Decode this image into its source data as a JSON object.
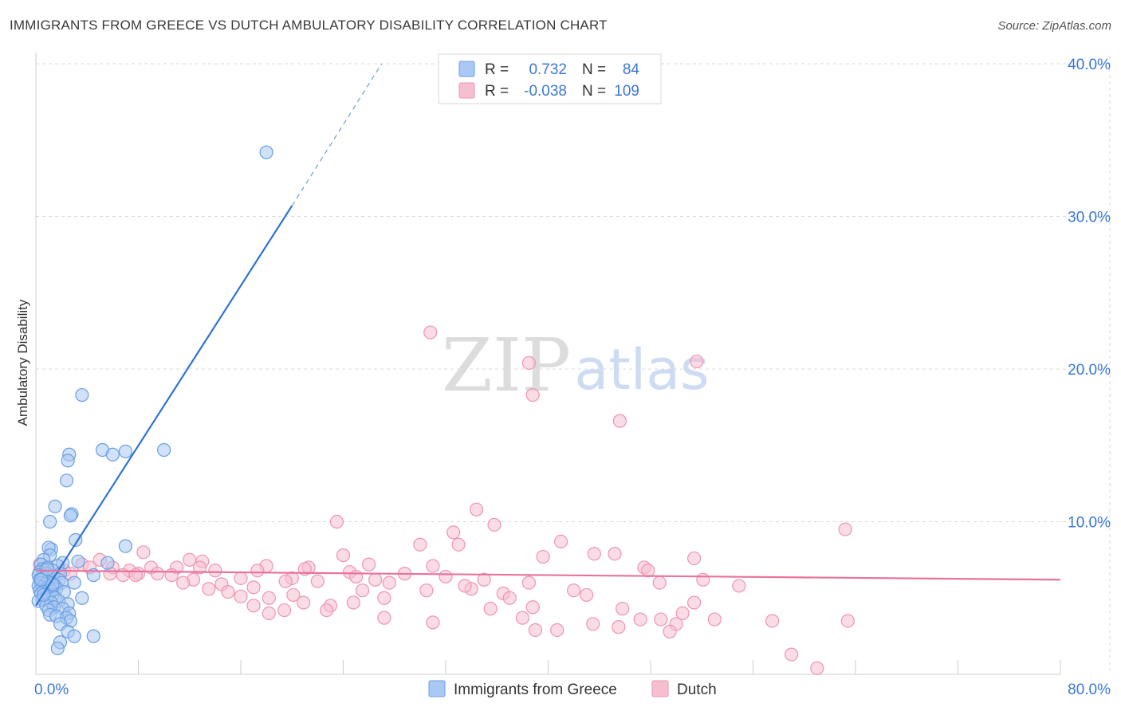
{
  "title": "IMMIGRANTS FROM GREECE VS DUTCH AMBULATORY DISABILITY CORRELATION CHART",
  "source": "Source: ZipAtlas.com",
  "watermark": {
    "zip": "ZIP",
    "atlas": "atlas"
  },
  "colors": {
    "blue_fill": "#a9c8f3",
    "blue_stroke": "#6a9ee3",
    "blue_line": "#2f74d0",
    "pink_fill": "#f6bfd0",
    "pink_stroke": "#ee94b2",
    "pink_line": "#e8739c",
    "axis_value": "#3a78d8",
    "grid": "#d9d9d9"
  },
  "legend": {
    "rows": [
      {
        "r_label": "R =",
        "r_value": "0.732",
        "n_label": "N =",
        "n_value": "84",
        "series": "blue"
      },
      {
        "r_label": "R =",
        "r_value": "-0.038",
        "n_label": "N =",
        "n_value": "109",
        "series": "pink"
      }
    ]
  },
  "chart_data": {
    "type": "scatter",
    "title": "IMMIGRANTS FROM GREECE VS DUTCH AMBULATORY DISABILITY CORRELATION CHART",
    "xlabel": "",
    "ylabel": "Ambulatory Disability",
    "xlim": [
      0,
      80
    ],
    "ylim": [
      0,
      40
    ],
    "x_ticks": [
      {
        "value": 0,
        "label": "0.0%"
      },
      {
        "value": 80,
        "label": "80.0%"
      }
    ],
    "y_ticks": [
      {
        "value": 10,
        "label": "10.0%"
      },
      {
        "value": 20,
        "label": "20.0%"
      },
      {
        "value": 30,
        "label": "30.0%"
      },
      {
        "value": 40,
        "label": "40.0%"
      }
    ],
    "series": [
      {
        "name": "Immigrants from Greece",
        "color": "blue",
        "r": 0.732,
        "n": 84,
        "trend": {
          "x_start": 0.0,
          "y_start": 4.5,
          "x_solid_end": 20.0,
          "y_solid_end": 30.7,
          "x_dash_end": 27.0,
          "y_dash_end": 40.0
        },
        "points": [
          [
            18.0,
            34.2
          ],
          [
            3.6,
            18.3
          ],
          [
            5.2,
            14.7
          ],
          [
            6.0,
            14.4
          ],
          [
            10.0,
            14.7
          ],
          [
            7.0,
            14.6
          ],
          [
            2.6,
            14.4
          ],
          [
            2.5,
            14.0
          ],
          [
            2.4,
            12.7
          ],
          [
            1.5,
            11.0
          ],
          [
            2.8,
            10.5
          ],
          [
            2.7,
            10.4
          ],
          [
            1.1,
            10.0
          ],
          [
            3.1,
            8.8
          ],
          [
            7.0,
            8.4
          ],
          [
            1.2,
            8.2
          ],
          [
            1.0,
            8.3
          ],
          [
            1.1,
            7.8
          ],
          [
            0.6,
            7.5
          ],
          [
            3.3,
            7.4
          ],
          [
            2.1,
            7.3
          ],
          [
            5.6,
            7.3
          ],
          [
            0.4,
            7.2
          ],
          [
            1.7,
            7.1
          ],
          [
            0.9,
            7.0
          ],
          [
            0.5,
            6.9
          ],
          [
            0.7,
            6.8
          ],
          [
            1.3,
            6.8
          ],
          [
            0.3,
            6.7
          ],
          [
            0.8,
            6.6
          ],
          [
            1.9,
            6.6
          ],
          [
            4.5,
            6.5
          ],
          [
            0.2,
            6.5
          ],
          [
            1.0,
            6.4
          ],
          [
            1.4,
            6.4
          ],
          [
            0.6,
            6.3
          ],
          [
            0.3,
            6.2
          ],
          [
            1.8,
            6.2
          ],
          [
            0.9,
            6.1
          ],
          [
            0.4,
            6.0
          ],
          [
            1.2,
            6.0
          ],
          [
            2.0,
            6.0
          ],
          [
            3.0,
            6.0
          ],
          [
            0.7,
            5.9
          ],
          [
            0.2,
            5.8
          ],
          [
            1.5,
            5.8
          ],
          [
            0.5,
            5.7
          ],
          [
            1.0,
            5.7
          ],
          [
            0.8,
            5.6
          ],
          [
            1.6,
            5.6
          ],
          [
            0.3,
            5.5
          ],
          [
            1.1,
            5.5
          ],
          [
            2.2,
            5.4
          ],
          [
            0.6,
            5.4
          ],
          [
            0.4,
            5.3
          ],
          [
            1.3,
            5.2
          ],
          [
            0.9,
            5.1
          ],
          [
            3.6,
            5.0
          ],
          [
            0.7,
            5.0
          ],
          [
            1.5,
            5.0
          ],
          [
            0.5,
            4.9
          ],
          [
            1.8,
            4.8
          ],
          [
            0.2,
            4.8
          ],
          [
            1.2,
            4.7
          ],
          [
            2.5,
            4.6
          ],
          [
            0.8,
            4.5
          ],
          [
            1.4,
            4.4
          ],
          [
            2.1,
            4.3
          ],
          [
            1.0,
            4.2
          ],
          [
            2.6,
            4.0
          ],
          [
            1.1,
            3.9
          ],
          [
            1.6,
            3.8
          ],
          [
            2.4,
            3.7
          ],
          [
            2.7,
            3.5
          ],
          [
            1.9,
            3.3
          ],
          [
            2.5,
            2.8
          ],
          [
            3.0,
            2.5
          ],
          [
            4.5,
            2.5
          ],
          [
            1.9,
            2.1
          ],
          [
            1.7,
            1.7
          ],
          [
            0.4,
            6.2
          ],
          [
            0.6,
            5.2
          ],
          [
            0.9,
            6.9
          ],
          [
            1.3,
            5.9
          ]
        ]
      },
      {
        "name": "Dutch",
        "color": "pink",
        "r": -0.038,
        "n": 109,
        "trend": {
          "x_start": 0.0,
          "y_start": 6.8,
          "x_end": 80.0,
          "y_end": 6.2
        },
        "points": [
          [
            30.8,
            22.4
          ],
          [
            51.6,
            20.5
          ],
          [
            38.5,
            20.4
          ],
          [
            38.8,
            18.3
          ],
          [
            45.6,
            16.6
          ],
          [
            34.4,
            10.8
          ],
          [
            23.5,
            10.0
          ],
          [
            35.8,
            9.8
          ],
          [
            63.2,
            9.5
          ],
          [
            32.6,
            9.3
          ],
          [
            33.0,
            8.5
          ],
          [
            30.0,
            8.5
          ],
          [
            41.0,
            8.7
          ],
          [
            8.4,
            8.0
          ],
          [
            24.0,
            7.8
          ],
          [
            39.6,
            7.7
          ],
          [
            43.6,
            7.9
          ],
          [
            45.2,
            7.9
          ],
          [
            51.4,
            7.6
          ],
          [
            12.0,
            7.5
          ],
          [
            13.0,
            7.4
          ],
          [
            5.0,
            7.5
          ],
          [
            26.0,
            7.2
          ],
          [
            31.0,
            7.1
          ],
          [
            18.0,
            7.1
          ],
          [
            21.3,
            7.0
          ],
          [
            47.5,
            7.0
          ],
          [
            0.3,
            7.2
          ],
          [
            3.6,
            7.2
          ],
          [
            6.0,
            7.0
          ],
          [
            9.0,
            7.0
          ],
          [
            11.0,
            7.0
          ],
          [
            4.2,
            7.0
          ],
          [
            2.2,
            6.8
          ],
          [
            7.3,
            6.8
          ],
          [
            14.0,
            6.8
          ],
          [
            17.3,
            6.8
          ],
          [
            24.5,
            6.7
          ],
          [
            28.8,
            6.6
          ],
          [
            2.7,
            6.6
          ],
          [
            5.8,
            6.6
          ],
          [
            8.0,
            6.6
          ],
          [
            9.5,
            6.6
          ],
          [
            10.6,
            6.5
          ],
          [
            6.8,
            6.5
          ],
          [
            47.8,
            6.8
          ],
          [
            1.2,
            6.4
          ],
          [
            16.0,
            6.3
          ],
          [
            20.0,
            6.3
          ],
          [
            26.5,
            6.2
          ],
          [
            12.3,
            6.2
          ],
          [
            19.5,
            6.1
          ],
          [
            35.0,
            6.2
          ],
          [
            52.1,
            6.2
          ],
          [
            22.0,
            6.1
          ],
          [
            11.5,
            6.0
          ],
          [
            27.6,
            6.0
          ],
          [
            38.5,
            6.0
          ],
          [
            48.7,
            6.0
          ],
          [
            54.9,
            5.8
          ],
          [
            14.5,
            5.9
          ],
          [
            17.0,
            5.7
          ],
          [
            13.5,
            5.6
          ],
          [
            30.5,
            5.5
          ],
          [
            25.5,
            5.5
          ],
          [
            34.0,
            5.6
          ],
          [
            15.0,
            5.4
          ],
          [
            20.1,
            5.2
          ],
          [
            36.5,
            5.3
          ],
          [
            43.0,
            5.2
          ],
          [
            16.0,
            5.1
          ],
          [
            18.2,
            5.0
          ],
          [
            27.2,
            5.0
          ],
          [
            24.8,
            4.7
          ],
          [
            51.4,
            4.7
          ],
          [
            20.9,
            4.7
          ],
          [
            17.0,
            4.5
          ],
          [
            23.0,
            4.5
          ],
          [
            38.8,
            4.4
          ],
          [
            45.8,
            4.3
          ],
          [
            35.5,
            4.3
          ],
          [
            22.7,
            4.2
          ],
          [
            19.4,
            4.2
          ],
          [
            18.2,
            4.0
          ],
          [
            50.5,
            4.0
          ],
          [
            27.2,
            3.7
          ],
          [
            38.0,
            3.7
          ],
          [
            48.8,
            3.6
          ],
          [
            47.2,
            3.6
          ],
          [
            53.0,
            3.6
          ],
          [
            57.5,
            3.5
          ],
          [
            63.4,
            3.5
          ],
          [
            31.0,
            3.4
          ],
          [
            43.5,
            3.3
          ],
          [
            50.0,
            3.3
          ],
          [
            45.5,
            3.1
          ],
          [
            39.0,
            2.9
          ],
          [
            40.7,
            2.9
          ],
          [
            49.5,
            2.8
          ],
          [
            59.0,
            1.3
          ],
          [
            61.0,
            0.4
          ],
          [
            7.8,
            6.5
          ],
          [
            32.0,
            6.4
          ],
          [
            25.0,
            6.4
          ],
          [
            12.8,
            7.0
          ],
          [
            21.0,
            6.9
          ],
          [
            33.5,
            5.8
          ],
          [
            37.0,
            5.0
          ],
          [
            42.0,
            5.5
          ]
        ]
      }
    ]
  },
  "bottom_legend": [
    {
      "label": "Immigrants from Greece",
      "series": "blue"
    },
    {
      "label": "Dutch",
      "series": "pink"
    }
  ]
}
